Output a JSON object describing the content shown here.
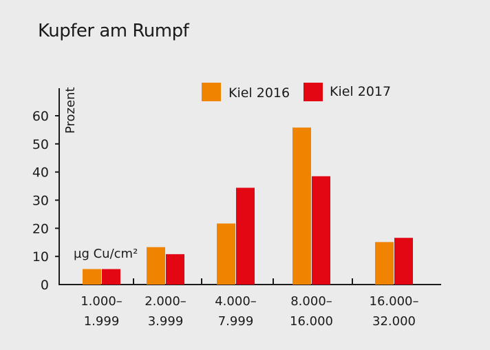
{
  "chart_data": {
    "type": "bar",
    "title": "Kupfer am Rumpf",
    "ylabel": "Prozent",
    "unit_label": "µg Cu/cm²",
    "ylim": [
      0,
      60
    ],
    "yticks": [
      0,
      10,
      20,
      30,
      40,
      50,
      60
    ],
    "grid": false,
    "legend_position": "top-right",
    "categories": [
      [
        "1.000–",
        "1.999"
      ],
      [
        "2.000–",
        "3.999"
      ],
      [
        "4.000–",
        "7.999"
      ],
      [
        "8.000–",
        "16.000"
      ],
      [
        "16.000–",
        "32.000"
      ]
    ],
    "series": [
      {
        "name": "Kiel 2016",
        "color": "#f08400",
        "values": [
          5.5,
          13.3,
          21.7,
          55.8,
          15.1
        ]
      },
      {
        "name": "Kiel 2017",
        "color": "#e30613",
        "values": [
          5.5,
          10.8,
          34.4,
          38.5,
          16.6
        ]
      }
    ]
  }
}
